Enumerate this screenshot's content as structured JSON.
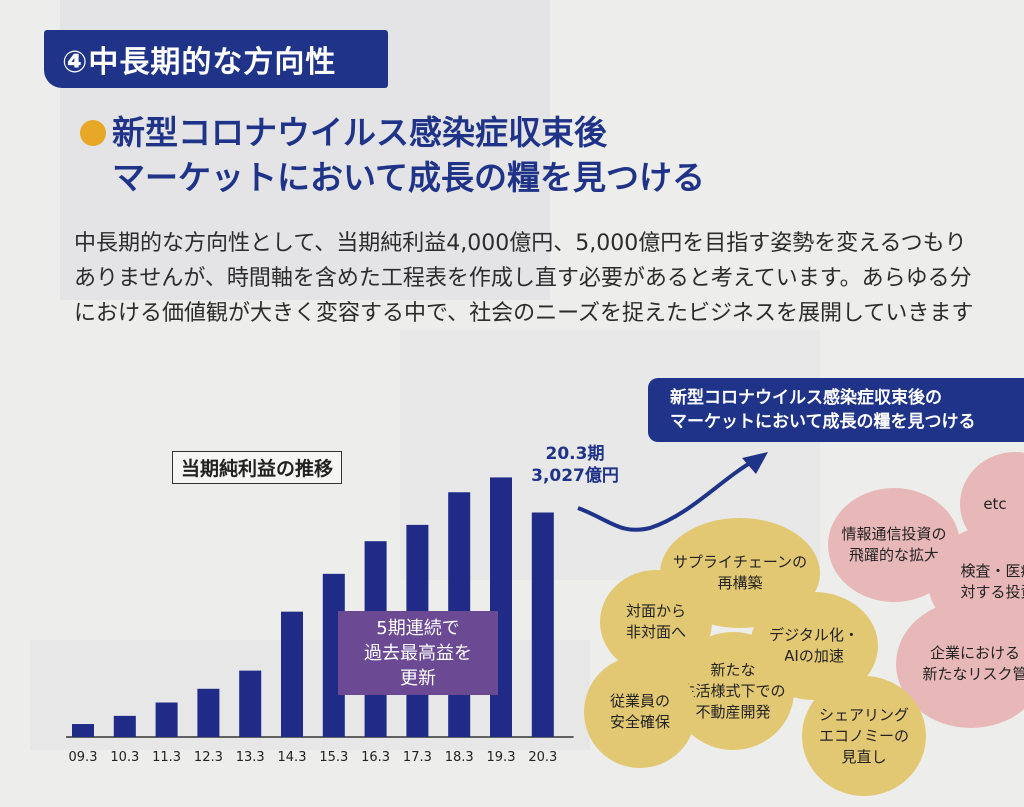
{
  "section_tag": "④中長期的な方向性",
  "headline": [
    "新型コロナウイルス感染症収束後",
    "マーケットにおいて成長の糧を見つける"
  ],
  "body": [
    "中長期的な方向性として、当期純利益4,000億円、5,000億円を目指す姿勢を変えるつもり",
    "ありませんが、時間軸を含めた工程表を作成し直す必要があると考えています。あらゆる分",
    "における価値観が大きく変容する中で、社会のニーズを捉えたビジネスを展開していきます"
  ],
  "chart_data": {
    "type": "bar",
    "title": "当期純利益の推移",
    "categories": [
      "09.3",
      "10.3",
      "11.3",
      "12.3",
      "13.3",
      "14.3",
      "15.3",
      "16.3",
      "17.3",
      "18.3",
      "19.3",
      "20.3"
    ],
    "values": [
      175,
      285,
      465,
      650,
      895,
      1690,
      2200,
      2640,
      2860,
      3300,
      3500,
      3027
    ],
    "ylim": [
      0,
      3600
    ],
    "color": "#1f2b86",
    "annotations": {
      "latest_period": "20.3期",
      "latest_value": "3,027億円",
      "record": [
        "5期連続で",
        "過去最高益を",
        "更新"
      ]
    }
  },
  "future": {
    "box": [
      "新型コロナウイルス感染症収束後の",
      "マーケットにおいて成長の糧を見つける"
    ],
    "bubbles_gold": [
      [
        "サプライチェーンの",
        "再構築"
      ],
      [
        "対面から",
        "非対面へ"
      ],
      [
        "デジタル化・",
        "AIの加速"
      ],
      [
        "新たな",
        "生活様式下での",
        "不動産開発"
      ],
      [
        "従業員の",
        "安全確保"
      ],
      [
        "シェアリング",
        "エコノミーの",
        "見直し"
      ]
    ],
    "bubbles_pink": [
      [
        "情報通信投資の",
        "飛躍的な拡大"
      ],
      [
        "etc"
      ],
      [
        "検査・医療",
        "対する投資"
      ],
      [
        "企業における",
        "新たなリスク管"
      ]
    ]
  }
}
